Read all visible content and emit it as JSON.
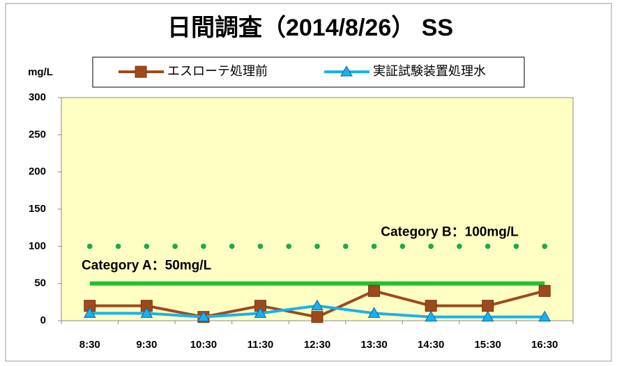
{
  "chart_data": {
    "type": "line",
    "title": "日間調査（2014/8/26） SS",
    "y_label": "mg/L",
    "categories": [
      "8:30",
      "9:30",
      "10:30",
      "11:30",
      "12:30",
      "13:30",
      "14:30",
      "15:30",
      "16:30"
    ],
    "series": [
      {
        "name": "エスローテ処理前",
        "color": "#9c4a1c",
        "marker": "square",
        "values": [
          20,
          20,
          5,
          20,
          5,
          40,
          20,
          20,
          40
        ]
      },
      {
        "name": "実証試験装置処理水",
        "color": "#16b2ef",
        "marker": "triangle",
        "values": [
          10,
          10,
          5,
          10,
          20,
          10,
          5,
          5,
          5
        ]
      }
    ],
    "reference_lines": [
      {
        "label": "Category B：100mg/L",
        "value": 100,
        "style": "dotted",
        "color": "#1fa84a"
      },
      {
        "label": "Category A：50mg/L",
        "value": 50,
        "style": "solid",
        "color": "#22c032"
      }
    ],
    "ylim": [
      0,
      300
    ],
    "yticks": [
      0,
      50,
      100,
      150,
      200,
      250,
      300
    ],
    "legend": "top",
    "grid": false
  }
}
